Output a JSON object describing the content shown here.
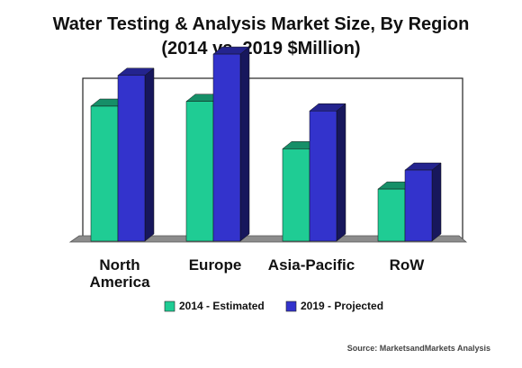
{
  "chart_data": {
    "type": "bar",
    "title": "Water Testing & Analysis Market Size, By Region",
    "subtitle": "(2014 vs. 2019 $Million)",
    "categories": [
      [
        "North",
        "America"
      ],
      [
        "Europe"
      ],
      [
        "Asia-Pacific"
      ],
      [
        "RoW"
      ]
    ],
    "series": [
      {
        "name": "2014 - Estimated",
        "color": "#1fcc94",
        "values": [
          57,
          59,
          39,
          22
        ]
      },
      {
        "name": "2019 - Projected",
        "color": "#3333cc",
        "values": [
          70,
          79,
          55,
          30
        ]
      }
    ],
    "ylim": [
      0,
      95
    ],
    "grid": false,
    "legend": "bottom",
    "xlabel": "",
    "ylabel": "",
    "source": "Source: MarketsandMarkets Analysis"
  }
}
